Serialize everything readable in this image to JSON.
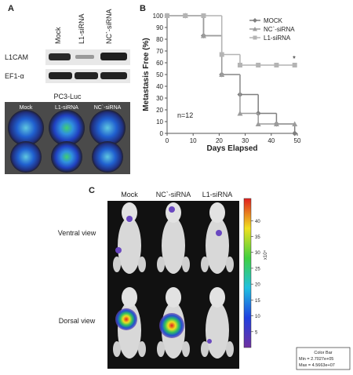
{
  "panel_a": {
    "label": "A",
    "lanes": [
      "Mock",
      "L1-siRNA",
      "NC`-siRNA"
    ],
    "rows": [
      "L1CAM",
      "EF1-α"
    ],
    "imaging_title": "PC3-Luc",
    "imaging_lanes": [
      "Mock",
      "L1-siRNA",
      "NC`-siRNA"
    ]
  },
  "chart_data": {
    "type": "line",
    "panel_label": "B",
    "step": true,
    "x": [
      0,
      7,
      14,
      21,
      28,
      35,
      42,
      49
    ],
    "series": [
      {
        "name": "MOCK",
        "color": "#7f7f7f",
        "marker": "diamond",
        "values": [
          100,
          100,
          83,
          50,
          33,
          17,
          8,
          0
        ]
      },
      {
        "name": "NC`-siRNA",
        "color": "#9c9c9c",
        "marker": "triangle",
        "values": [
          100,
          100,
          83,
          50,
          17,
          8,
          8,
          8
        ]
      },
      {
        "name": "L1-siRNA",
        "color": "#b4b4b4",
        "marker": "square",
        "values": [
          100,
          100,
          100,
          67,
          58,
          58,
          58,
          58
        ]
      }
    ],
    "xlim": [
      0,
      50
    ],
    "xticks": [
      0,
      10,
      20,
      30,
      40,
      50
    ],
    "ylim": [
      0,
      100
    ],
    "yticks": [
      0,
      10,
      20,
      30,
      40,
      50,
      60,
      70,
      80,
      90,
      100
    ],
    "xlabel": "Days Elapsed",
    "ylabel": "Metastasis Free (%)",
    "annotations": [
      "n=12",
      "*"
    ],
    "legend": "top-right"
  },
  "panel_c": {
    "label": "C",
    "columns": [
      "Mock",
      "NC`-siRNA",
      "L1-siRNA"
    ],
    "rows": [
      "Ventral view",
      "Dorsal view"
    ],
    "colorbar": {
      "lim": [
        0,
        47
      ],
      "ticks": [
        5,
        10,
        15,
        20,
        25,
        30,
        35,
        40
      ],
      "unit": "x10⁴",
      "title": "Color Bar",
      "min": "Min = 2.7027e+05",
      "max": "Max = 4.5663e+07"
    }
  }
}
